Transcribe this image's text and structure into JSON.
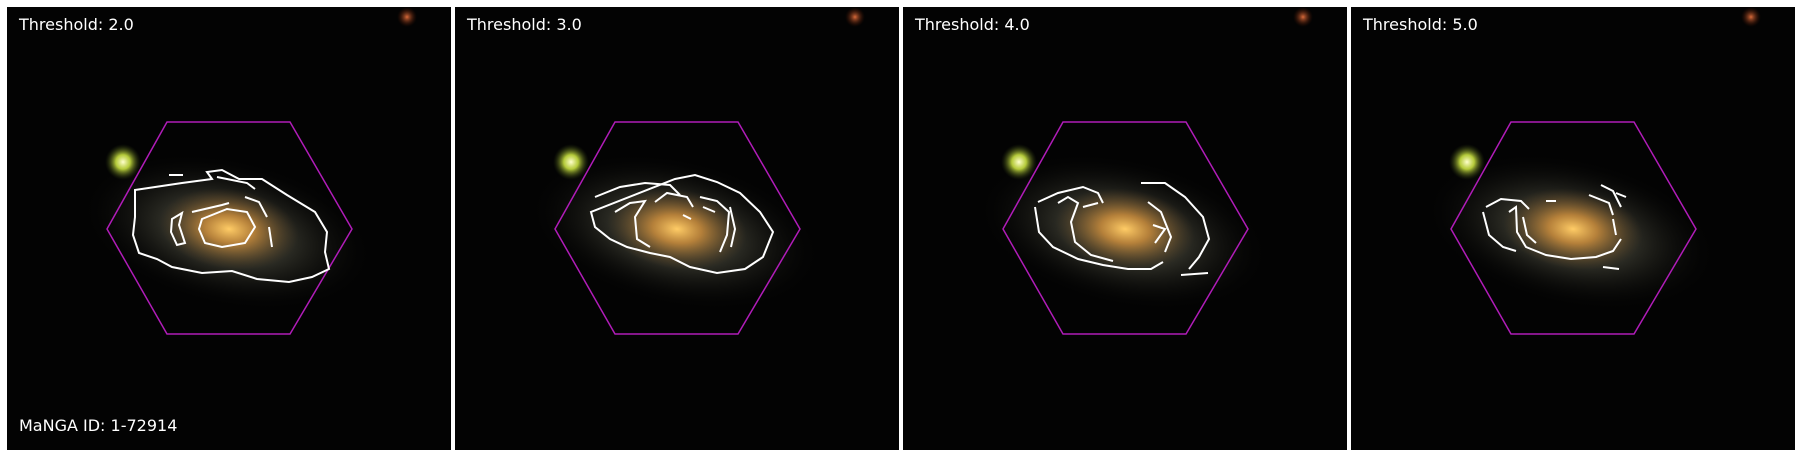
{
  "figure": {
    "manga_id_label": "MaNGA ID: 1-72914",
    "panels": [
      {
        "label": "Threshold: 2.0",
        "threshold": 2.0
      },
      {
        "label": "Threshold: 3.0",
        "threshold": 3.0
      },
      {
        "label": "Threshold: 4.0",
        "threshold": 4.0
      },
      {
        "label": "Threshold: 5.0",
        "threshold": 5.0
      }
    ]
  },
  "colors": {
    "ifu_hexagon": "#b01cb8",
    "contour": "#ffffff",
    "label_text": "#ffffff"
  }
}
